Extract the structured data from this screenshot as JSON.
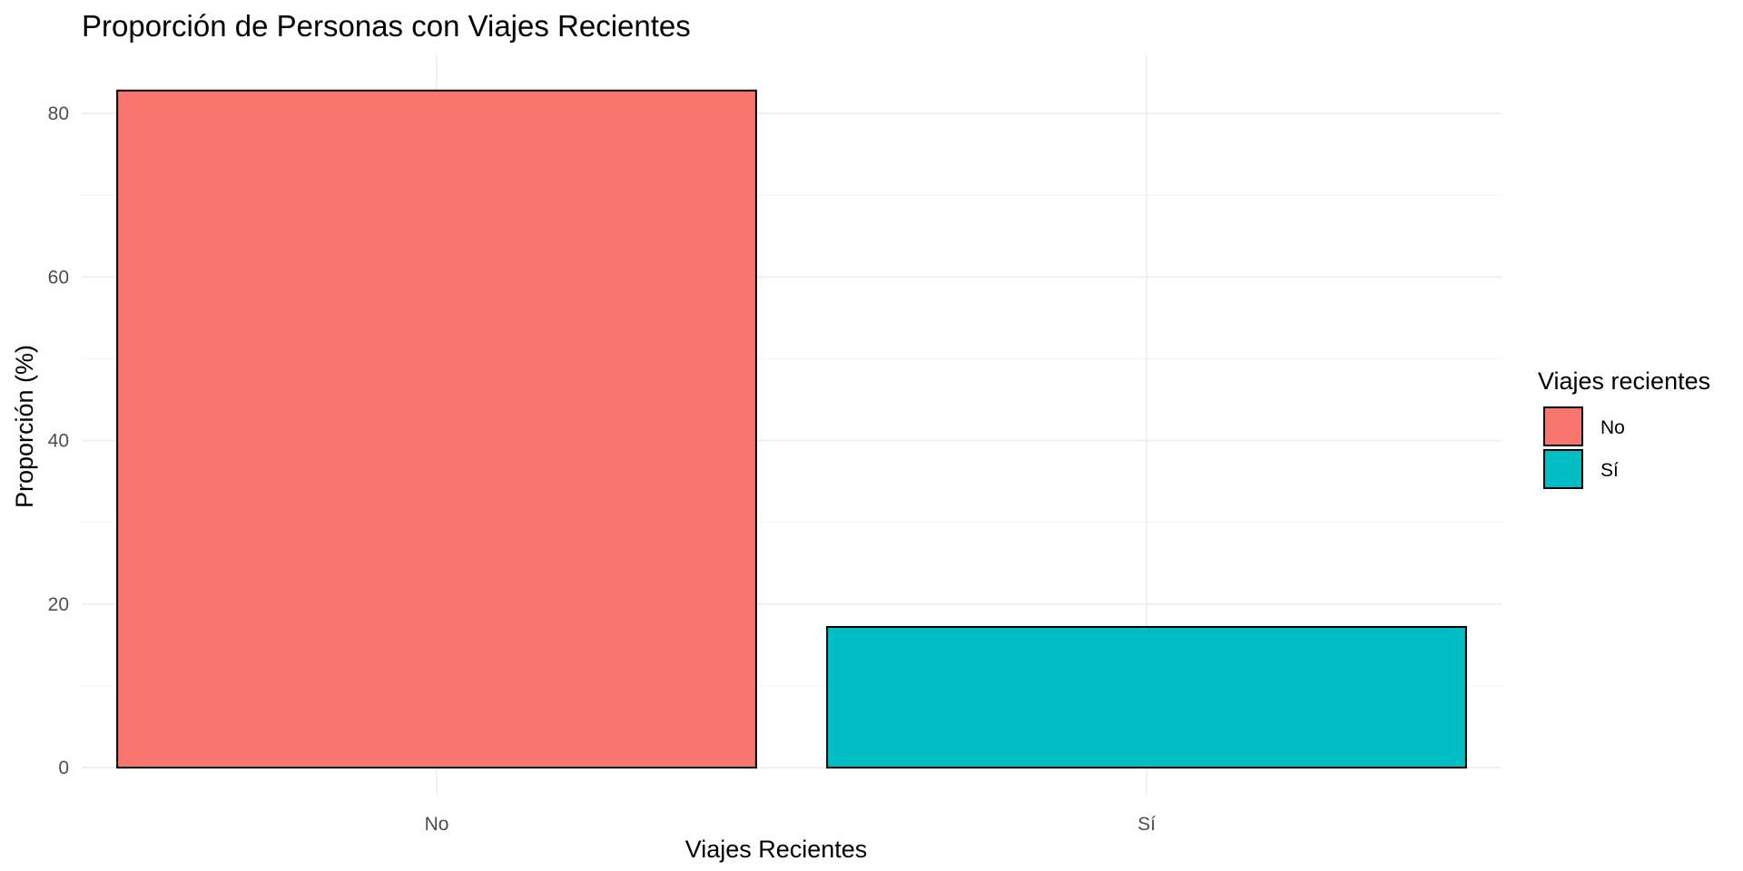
{
  "chart_data": {
    "type": "bar",
    "title": "Proporción de Personas con Viajes Recientes",
    "xlabel": "Viajes Recientes",
    "ylabel": "Proporción (%)",
    "categories": [
      "No",
      "Sí"
    ],
    "values": [
      82.8,
      17.2
    ],
    "colors": [
      "#F8766D",
      "#00BFC4"
    ],
    "ylim": [
      0,
      85
    ],
    "yticks": [
      0,
      20,
      40,
      60,
      80
    ],
    "grid": true,
    "legend": {
      "title": "Viajes recientes",
      "position": "right",
      "entries": [
        {
          "label": "No",
          "color": "#F8766D"
        },
        {
          "label": "Sí",
          "color": "#00BFC4"
        }
      ]
    }
  }
}
